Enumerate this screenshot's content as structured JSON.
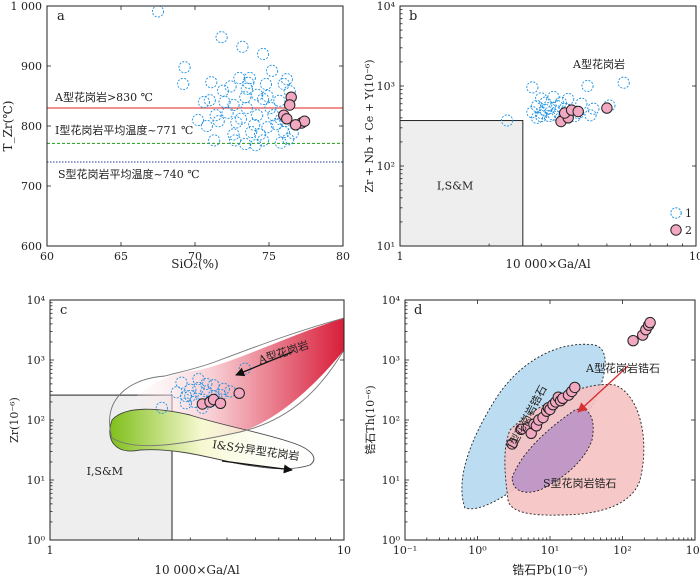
{
  "colors": {
    "open_circle": "#1a8fe0",
    "filled_circle": "#f2a8c0",
    "filled_stroke": "#222222",
    "red_line": "#e02020",
    "green_line": "#3aa82a",
    "blue_line": "#1f3b9a",
    "box_fill": "#eeeeee",
    "a_field": "#d81e3a",
    "is_field": "#7fbf1a",
    "i_zircon": "#bcdcf2",
    "s_zircon": "#f6c2c2",
    "a_zircon": "#e8c8d8",
    "arrow": "#d83030"
  },
  "chart_data": [
    {
      "panel": "a",
      "type": "scatter",
      "xlabel": "SiO₂(%)",
      "ylabel": "T_Zr(℃)",
      "xlim": [
        60,
        80
      ],
      "ylim": [
        600,
        1000
      ],
      "xticks": [
        60,
        65,
        70,
        75,
        80
      ],
      "yticks": [
        600,
        700,
        800,
        900,
        1000
      ],
      "xtick_labels": [
        "60",
        "65",
        "70",
        "75",
        "80"
      ],
      "ytick_labels": [
        "600",
        "700",
        "800",
        "900",
        "1 000"
      ],
      "reference_lines": [
        {
          "y": 830,
          "style": "solid",
          "color": "red",
          "label": "A型花岗岩>830 ℃"
        },
        {
          "y": 771,
          "style": "dashed",
          "color": "green",
          "label": "I型花岗岩平均温度~771 ℃"
        },
        {
          "y": 740,
          "style": "dotted",
          "color": "blue",
          "label": "S型花岗岩平均温度~740 ℃"
        }
      ],
      "series": [
        {
          "name": "1",
          "marker": "open-circle",
          "points": [
            [
              67.5,
              991
            ],
            [
              69.3,
              898
            ],
            [
              69.2,
              870
            ],
            [
              71.8,
              948
            ],
            [
              73.2,
              932
            ],
            [
              73.7,
              880
            ],
            [
              74.6,
              920
            ],
            [
              73.6,
              872
            ],
            [
              72.4,
              866
            ],
            [
              71.1,
              873
            ],
            [
              73.5,
              862
            ],
            [
              74.8,
              870
            ],
            [
              75.2,
              892
            ],
            [
              76.0,
              870
            ],
            [
              76.2,
              878
            ],
            [
              73.4,
              848
            ],
            [
              72.6,
              835
            ],
            [
              75.1,
              830
            ],
            [
              72.2,
              822
            ],
            [
              71.4,
              818
            ],
            [
              70.8,
              800
            ],
            [
              71.6,
              808
            ],
            [
              72.8,
              806
            ],
            [
              73.1,
              812
            ],
            [
              74.0,
              802
            ],
            [
              74.2,
              818
            ],
            [
              75.3,
              818
            ],
            [
              75.8,
              811
            ],
            [
              74.9,
              798
            ],
            [
              73.8,
              790
            ],
            [
              72.6,
              786
            ],
            [
              71.3,
              776
            ],
            [
              74.6,
              776
            ],
            [
              74.1,
              768
            ],
            [
              76.3,
              778
            ],
            [
              76.0,
              790
            ],
            [
              75.7,
              842
            ],
            [
              76.4,
              858
            ],
            [
              73.5,
              830
            ],
            [
              74.2,
              852
            ],
            [
              74.9,
              850
            ],
            [
              72.0,
              840
            ],
            [
              70.6,
              840
            ],
            [
              71.0,
              843
            ],
            [
              75.5,
              803
            ],
            [
              74.4,
              786
            ],
            [
              72.7,
              776
            ],
            [
              73.4,
              770
            ],
            [
              75.8,
              772
            ],
            [
              76.6,
              788
            ],
            [
              70.2,
              810
            ],
            [
              71.9,
              859
            ],
            [
              73.0,
              880
            ],
            [
              74.6,
              845
            ],
            [
              76.1,
              808
            ]
          ]
        },
        {
          "name": "2",
          "marker": "filled-circle",
          "points": [
            [
              76.5,
              848
            ],
            [
              76.4,
              835
            ],
            [
              76.0,
              818
            ],
            [
              76.2,
              812
            ],
            [
              77.2,
              805
            ],
            [
              77.4,
              808
            ],
            [
              76.8,
              802
            ]
          ]
        }
      ]
    },
    {
      "panel": "b",
      "type": "scatter",
      "xlabel": "10 000×Ga/Al",
      "ylabel": "Zr + Nb + Ce + Y(10⁻⁶)",
      "xscale": "log",
      "yscale": "log",
      "xlim": [
        1,
        10
      ],
      "ylim": [
        10,
        10000
      ],
      "xticks": [
        1,
        10
      ],
      "xtick_labels": [
        "1",
        "10"
      ],
      "yticks": [
        10,
        100,
        1000,
        10000
      ],
      "ytick_labels": [
        "10¹",
        "10²",
        "10³",
        "10⁴"
      ],
      "field_box": {
        "x": [
          1,
          2.6
        ],
        "y": [
          10,
          370
        ],
        "label": "I,S&M"
      },
      "annotations": [
        "A型花岗岩"
      ],
      "legend": {
        "position": "bottom-right",
        "entries": [
          "1",
          "2"
        ]
      },
      "series": [
        {
          "name": "1",
          "marker": "open-circle",
          "points": [
            [
              2.3,
              370
            ],
            [
              2.8,
              960
            ],
            [
              3.0,
              700
            ],
            [
              3.3,
              730
            ],
            [
              3.1,
              620
            ],
            [
              3.5,
              620
            ],
            [
              2.9,
              560
            ],
            [
              3.2,
              530
            ],
            [
              3.6,
              520
            ],
            [
              3.4,
              480
            ],
            [
              3.0,
              460
            ],
            [
              3.8,
              480
            ],
            [
              3.2,
              420
            ],
            [
              3.5,
              400
            ],
            [
              2.9,
              400
            ],
            [
              4.1,
              600
            ],
            [
              4.3,
              1000
            ],
            [
              4.5,
              520
            ],
            [
              5.1,
              570
            ],
            [
              5.7,
              1100
            ],
            [
              3.7,
              690
            ],
            [
              3.1,
              500
            ],
            [
              3.3,
              440
            ],
            [
              4.0,
              460
            ],
            [
              2.8,
              470
            ],
            [
              3.6,
              430
            ],
            [
              4.4,
              430
            ],
            [
              3.4,
              560
            ],
            [
              3.9,
              420
            ],
            [
              3.0,
              420
            ]
          ]
        },
        {
          "name": "2",
          "marker": "filled-circle",
          "points": [
            [
              3.5,
              360
            ],
            [
              3.7,
              400
            ],
            [
              3.6,
              460
            ],
            [
              3.8,
              500
            ],
            [
              4.0,
              480
            ],
            [
              5.0,
              530
            ]
          ]
        }
      ]
    },
    {
      "panel": "c",
      "type": "scatter",
      "xlabel": "10 000×Ga/Al",
      "ylabel": "Zr(10⁻⁶)",
      "xscale": "log",
      "yscale": "log",
      "xlim": [
        1,
        10
      ],
      "ylim": [
        1,
        10000
      ],
      "xticks": [
        1,
        10
      ],
      "xtick_labels": [
        "1",
        "10"
      ],
      "yticks": [
        1,
        10,
        100,
        1000,
        10000
      ],
      "ytick_labels": [
        "10⁰",
        "10¹",
        "10²",
        "10³",
        "10⁴"
      ],
      "field_box": {
        "x": [
          1,
          2.6
        ],
        "y": [
          1,
          260
        ],
        "label": "I,S&M"
      },
      "annotations": [
        "A型花岗岩",
        "I&S分异型花岗岩"
      ],
      "series": [
        {
          "name": "1",
          "marker": "open-circle",
          "points": [
            [
              2.4,
              160
            ],
            [
              2.8,
              420
            ],
            [
              2.9,
              250
            ],
            [
              3.0,
              320
            ],
            [
              3.2,
              340
            ],
            [
              3.4,
              300
            ],
            [
              3.1,
              200
            ],
            [
              3.6,
              380
            ],
            [
              3.8,
              260
            ],
            [
              3.3,
              220
            ],
            [
              3.5,
              200
            ],
            [
              2.9,
              190
            ],
            [
              3.7,
              220
            ],
            [
              4.1,
              300
            ],
            [
              4.6,
              720
            ],
            [
              3.2,
              480
            ],
            [
              3.0,
              250
            ],
            [
              3.6,
              250
            ],
            [
              3.4,
              400
            ],
            [
              3.9,
              330
            ],
            [
              3.3,
              160
            ],
            [
              2.7,
              290
            ]
          ]
        },
        {
          "name": "2",
          "marker": "filled-circle",
          "points": [
            [
              3.3,
              185
            ],
            [
              3.5,
              200
            ],
            [
              3.6,
              220
            ],
            [
              3.8,
              190
            ],
            [
              4.4,
              280
            ]
          ]
        }
      ]
    },
    {
      "panel": "d",
      "type": "scatter",
      "xlabel": "锆石Pb(10⁻⁶)",
      "ylabel": "锆石Th(10⁻⁶)",
      "xscale": "log",
      "yscale": "log",
      "xlim": [
        0.1,
        1000
      ],
      "ylim": [
        1,
        10000
      ],
      "xticks": [
        0.1,
        1,
        10,
        100,
        1000
      ],
      "xtick_labels": [
        "10⁻¹",
        "10⁰",
        "10¹",
        "10²",
        "10³"
      ],
      "yticks": [
        1,
        10,
        100,
        1000,
        10000
      ],
      "ytick_labels": [
        "10⁰",
        "10¹",
        "10²",
        "10³",
        "10⁴"
      ],
      "annotations": [
        "I型花岗岩锆石",
        "A型花岗岩锆石",
        "S型花岗岩锆石"
      ],
      "series": [
        {
          "name": "2",
          "marker": "filled-circle",
          "points": [
            [
              3.0,
              40
            ],
            [
              4.0,
              70
            ],
            [
              5.0,
              75
            ],
            [
              5.5,
              60
            ],
            [
              6.0,
              85
            ],
            [
              6.5,
              80
            ],
            [
              7.0,
              100
            ],
            [
              8.0,
              110
            ],
            [
              9.0,
              140
            ],
            [
              9.5,
              160
            ],
            [
              10,
              150
            ],
            [
              11,
              180
            ],
            [
              12,
              200
            ],
            [
              13,
              240
            ],
            [
              14,
              210
            ],
            [
              15,
              230
            ],
            [
              18,
              260
            ],
            [
              20,
              300
            ],
            [
              22,
              350
            ],
            [
              140,
              2100
            ],
            [
              190,
              2600
            ],
            [
              210,
              3200
            ],
            [
              230,
              3800
            ],
            [
              240,
              4200
            ]
          ]
        }
      ]
    }
  ]
}
